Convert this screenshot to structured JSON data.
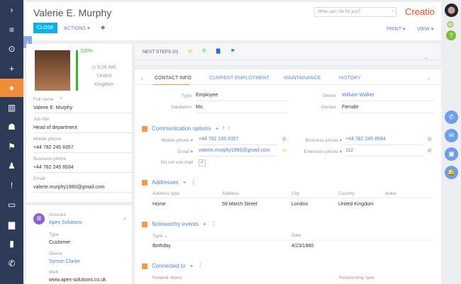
{
  "header": {
    "title": "Valerie E. Murphy",
    "close": "CLOSE",
    "actions": "ACTIONS",
    "print": "PRINT",
    "view": "VIEW",
    "search_placeholder": "What can I do for you?",
    "logo": "Creatio"
  },
  "sidebar": {
    "icons": [
      "chevron-right-icon",
      "menu-icon",
      "play-icon",
      "plus-icon",
      "contact-icon",
      "accounts-icon",
      "leads-icon",
      "flag-icon",
      "user-icon",
      "alert-icon",
      "book-icon",
      "chat-icon",
      "chart-icon",
      "phone-icon"
    ],
    "active": 4
  },
  "profile": {
    "completeness": "100%",
    "time": "9:26 AM,",
    "country1": "United",
    "country2": "Kingdom",
    "fields": [
      {
        "label": "Full name",
        "value": "Valerie E. Murphy",
        "required": true
      },
      {
        "label": "Job title",
        "value": "Head of department"
      },
      {
        "label": "Mobile phone",
        "value": "+44 782 245 8357"
      },
      {
        "label": "Business phone",
        "value": "+44 782 245 8934"
      },
      {
        "label": "Email",
        "value": "valerie.murphy1980@gmail.com"
      }
    ]
  },
  "account": {
    "label": "Account",
    "name": "Apex Solutions",
    "type_label": "Type",
    "type": "Customer",
    "owner_label": "Owner",
    "owner": "Symon Clarke",
    "web_label": "Web",
    "web": "www.apex-solutions.co.uk"
  },
  "next_steps": {
    "label": "NEXT STEPS (0)"
  },
  "tabs": [
    "CONTACT INFO",
    "CURRENT EMPLOYMENT",
    "MAINTAINANCE",
    "HISTORY"
  ],
  "contact": {
    "type_label": "Type",
    "type": "Employee",
    "salutation_label": "Salutation",
    "salutation": "Ms.",
    "owner_label": "Owner",
    "owner": "William Walker",
    "gender_label": "Gender",
    "gender": "Female"
  },
  "comm": {
    "title": "Communication options",
    "mobile_label": "Mobile phone",
    "mobile": "+44 782 245 8357",
    "email_label": "Email",
    "email": "valerie.murphy1980@gmail.com",
    "business_label": "Business phone",
    "business": "+44 782 245 8934",
    "ext_label": "Extension phone",
    "ext": "112",
    "dnu_label": "Do not use mail",
    "dnu_checked": true
  },
  "addresses": {
    "title": "Addresses",
    "columns": [
      "Address type",
      "Address",
      "City",
      "Country",
      "Index"
    ],
    "rows": [
      [
        "Home",
        "59 March Street",
        "London",
        "United Kingdom",
        ""
      ]
    ]
  },
  "events": {
    "title": "Noteworthy events",
    "columns": [
      "Type",
      "Date"
    ],
    "rows": [
      [
        "Birthday",
        "4/23/1980"
      ]
    ]
  },
  "connected": {
    "title": "Connected to",
    "columns": [
      "Related object",
      "Relationship type"
    ]
  },
  "colors": {
    "sidebar": "#2c3a57",
    "accent": "#f28c38",
    "primary": "#0ab1e8",
    "link": "#4f7dd6"
  }
}
